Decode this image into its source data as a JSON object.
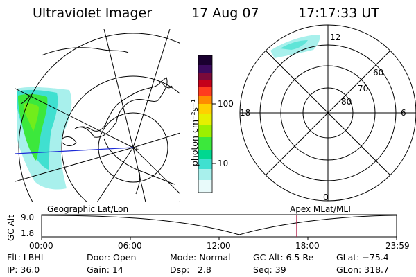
{
  "header": {
    "instrument": "Ultraviolet Imager",
    "date": "17 Aug 07",
    "time": "17:17:33 UT"
  },
  "colorbar": {
    "unit_label": "photon cm⁻²s⁻¹",
    "ticks": [
      "100",
      "10"
    ],
    "colors": [
      "#1a0030",
      "#3b0a5e",
      "#7a0a3a",
      "#c4001a",
      "#ff3c1e",
      "#ff8c00",
      "#ffd000",
      "#e6f000",
      "#9cf000",
      "#3ce83c",
      "#00d890",
      "#40e0d0",
      "#a8f0ec",
      "#e8fafa"
    ]
  },
  "geo_map": {
    "projection_label": "Geographic Lat/Lon"
  },
  "polar_plot": {
    "mlt_labels": {
      "top": "12",
      "left": "18",
      "right": "6",
      "bottom": "0"
    },
    "lat_labels": [
      "60",
      "70",
      "80"
    ],
    "projection_label": "Apex MLat/MLT"
  },
  "orbit_plot": {
    "y_axis_title": "GC Alt",
    "y_ticks": [
      "9.0",
      "1.8"
    ],
    "x_ticks": [
      "00:00",
      "06:00",
      "12:00",
      "18:00",
      "23:59"
    ],
    "marker_color": "#b0204a"
  },
  "info": {
    "row1": [
      "Flt: LBHL",
      "Door: Open",
      "Mode: Normal",
      "GC Alt: 6.5 Re",
      "GLat: −75.4"
    ],
    "row2": [
      "IP: 36.0",
      "Gain: 14",
      "Dsp:",
      "2.8",
      "Seq: 39",
      "GLon: 318.7"
    ]
  }
}
